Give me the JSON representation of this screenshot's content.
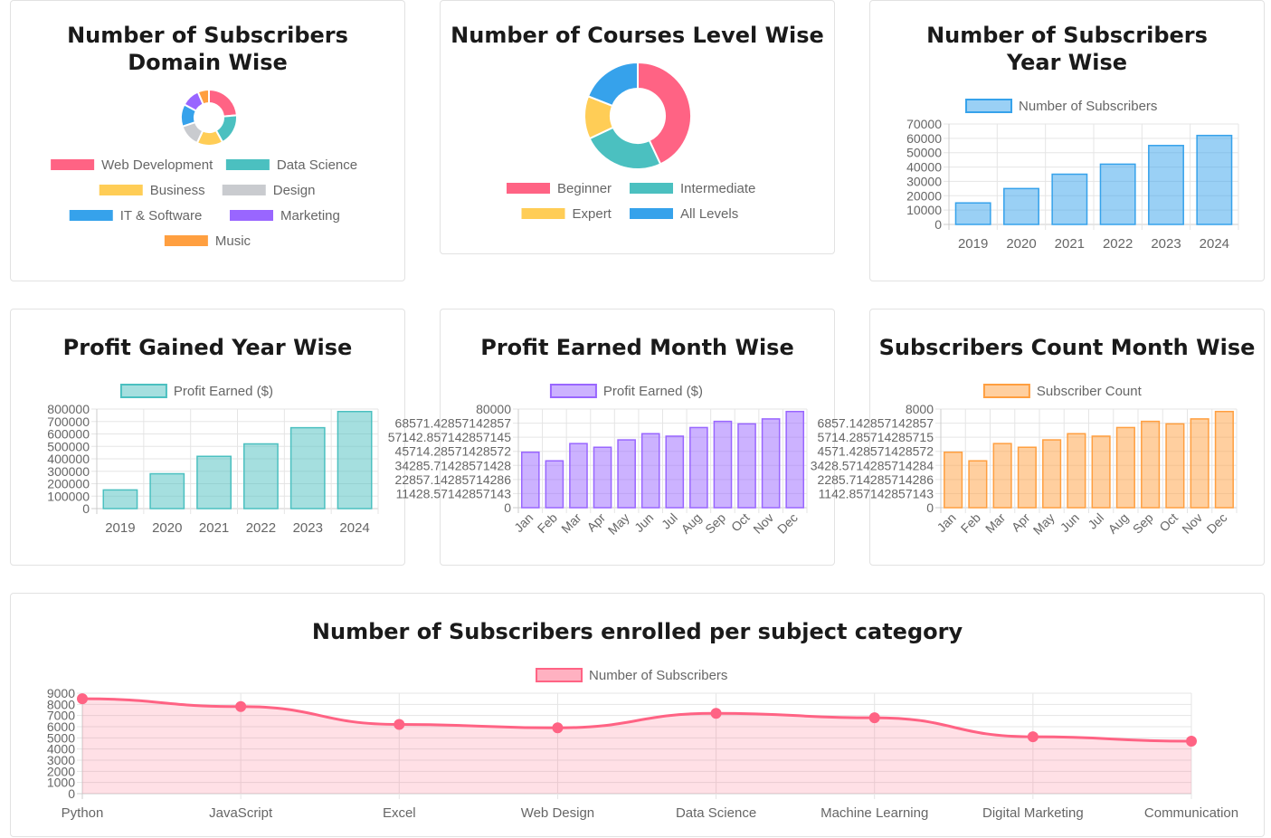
{
  "colors": {
    "pink": "#ff6384",
    "teal": "#4bc0c0",
    "yellow": "#ffcd56",
    "grey": "#c9cbcf",
    "blue": "#36a2eb",
    "purple": "#9966ff",
    "orange": "#ff9f40",
    "grid": "#e5e5e5"
  },
  "chart_data": [
    {
      "type": "pie",
      "title": "Number of Subscribers Domain Wise",
      "categories": [
        "Web Development",
        "Data Science",
        "Business",
        "Design",
        "IT & Software",
        "Marketing",
        "Music"
      ],
      "values": [
        22,
        17,
        14,
        12,
        12,
        10,
        6
      ]
    },
    {
      "type": "pie",
      "title": "Number of Courses Level Wise",
      "categories": [
        "Beginner",
        "Intermediate",
        "Expert",
        "All Levels"
      ],
      "values": [
        43,
        25,
        13,
        19
      ]
    },
    {
      "type": "bar",
      "title": "Number of Subscribers Year Wise",
      "categories": [
        "2019",
        "2020",
        "2021",
        "2022",
        "2023",
        "2024"
      ],
      "series": [
        {
          "name": "Number of Subscribers",
          "values": [
            15000,
            25000,
            35000,
            42000,
            55000,
            62000
          ]
        }
      ],
      "ylim": [
        0,
        70000
      ]
    },
    {
      "type": "bar",
      "title": "Profit Gained Year Wise",
      "categories": [
        "2019",
        "2020",
        "2021",
        "2022",
        "2023",
        "2024"
      ],
      "series": [
        {
          "name": "Profit Earned ($)",
          "values": [
            150000,
            280000,
            420000,
            520000,
            650000,
            780000
          ]
        }
      ],
      "ylim": [
        0,
        800000
      ]
    },
    {
      "type": "bar",
      "title": "Profit Earned Month Wise",
      "categories": [
        "Jan",
        "Feb",
        "Mar",
        "Apr",
        "May",
        "Jun",
        "Jul",
        "Aug",
        "Sep",
        "Oct",
        "Nov",
        "Dec"
      ],
      "series": [
        {
          "name": "Profit Earned ($)",
          "values": [
            45000,
            38000,
            52000,
            49000,
            55000,
            60000,
            58000,
            65000,
            70000,
            68000,
            72000,
            78000
          ]
        }
      ],
      "ylim": [
        0,
        80000
      ]
    },
    {
      "type": "bar",
      "title": "Subscribers Count Month Wise",
      "categories": [
        "Jan",
        "Feb",
        "Mar",
        "Apr",
        "May",
        "Jun",
        "Jul",
        "Aug",
        "Sep",
        "Oct",
        "Nov",
        "Dec"
      ],
      "series": [
        {
          "name": "Subscriber Count",
          "values": [
            4500,
            3800,
            5200,
            4900,
            5500,
            6000,
            5800,
            6500,
            7000,
            6800,
            7200,
            7800
          ]
        }
      ],
      "ylim": [
        0,
        8000
      ]
    },
    {
      "type": "area",
      "title": "Number of Subscribers enrolled per subject category",
      "categories": [
        "Python",
        "JavaScript",
        "Excel",
        "Web Design",
        "Data Science",
        "Machine Learning",
        "Digital Marketing",
        "Communication"
      ],
      "series": [
        {
          "name": "Number of Subscribers",
          "values": [
            8500,
            7800,
            6200,
            5900,
            7200,
            6800,
            5100,
            4700
          ]
        }
      ],
      "ylim": [
        0,
        9000
      ]
    }
  ]
}
